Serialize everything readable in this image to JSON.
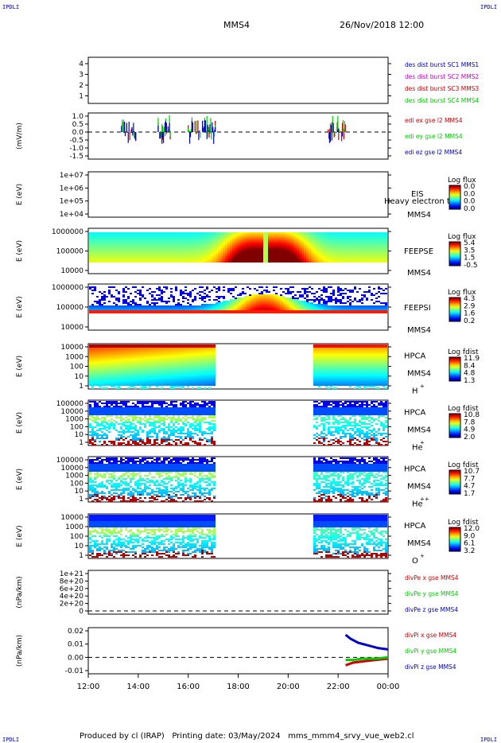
{
  "corners": {
    "tl": "IPDLI",
    "tr": "IPDLI",
    "bl": "IPDLI",
    "br": "IPDLI"
  },
  "header": {
    "title": "MMS4",
    "datetime": "26/Nov/2018 12:00"
  },
  "footer": {
    "text": "Produced by cl (IRAP)   Printing date: 03/May/2024   mms_mmm4_srvy_vue_web2.cl"
  },
  "x_axis": {
    "ticks": [
      "12:00",
      "14:00",
      "16:00",
      "18:00",
      "20:00",
      "22:00",
      "00:00"
    ]
  },
  "colors": {
    "red": "#cc0000",
    "green": "#00cc00",
    "blue": "#0000cc",
    "magenta": "#cc00cc"
  },
  "chart_data": [
    {
      "type": "line",
      "panel": "des-dist-burst",
      "yticks": [
        "4",
        "3",
        "2",
        "1"
      ],
      "ylim": [
        0.5,
        4.5
      ],
      "legend": [
        {
          "name": "des dist burst SC1 MMS1",
          "color": "#0000cc"
        },
        {
          "name": "des dist burst SC2 MMS2",
          "color": "#cc00cc"
        },
        {
          "name": "des dist burst SC3 MMS3",
          "color": "#cc0000"
        },
        {
          "name": "des dist burst SC4 MMS4",
          "color": "#00cc00"
        }
      ]
    },
    {
      "type": "line",
      "panel": "edi",
      "ylabel": "(mV/m)",
      "yticks": [
        "1.0",
        "0.5",
        "0.0",
        "-0.5",
        "-1.0",
        "-1.5"
      ],
      "ylim": [
        -1.6,
        1.1
      ],
      "legend": [
        {
          "name": "edi ex gse l2 MMS4",
          "color": "#cc0000"
        },
        {
          "name": "edi ey gse l2 MMS4",
          "color": "#00cc00"
        },
        {
          "name": "edi ez gse l2 MMS4",
          "color": "#0000cc"
        }
      ]
    },
    {
      "type": "heatmap",
      "panel": "eis",
      "ylabel": "E (eV)",
      "yticks": [
        "1e+07",
        "1e+06",
        "1e+05",
        "1e+04"
      ],
      "label": "EIS",
      "sc": "MMS4",
      "overlay": "Heavy electron te",
      "cb_title": "Log flux",
      "cb_ticks": [
        "0.0",
        "0.0",
        "0.0",
        "0.0"
      ]
    },
    {
      "type": "heatmap",
      "panel": "feeps-e",
      "ylabel": "E (eV)",
      "yticks": [
        "1000000",
        "100000",
        "10000"
      ],
      "label": "FEEPSE",
      "sc": "MMS4",
      "cb_title": "Log flux",
      "cb_ticks": [
        "5.4",
        "3.5",
        "1.5",
        "-0.5"
      ]
    },
    {
      "type": "heatmap",
      "panel": "feeps-i",
      "ylabel": "E (eV)",
      "yticks": [
        "1000000",
        "100000",
        "10000"
      ],
      "label": "FEEPSI",
      "sc": "MMS4",
      "cb_title": "Log flux",
      "cb_ticks": [
        "4.3",
        "2.9",
        "1.6",
        "0.2"
      ]
    },
    {
      "type": "heatmap",
      "panel": "hpca-h",
      "ylabel": "E (eV)",
      "yticks": [
        "10000",
        "1000",
        "100",
        "10",
        "1"
      ],
      "label": "HPCA",
      "sc": "MMS4",
      "species": "H",
      "charge": "+",
      "cb_title": "Log fdist",
      "cb_ticks": [
        "11.9",
        "8.4",
        "4.8",
        "1.3"
      ]
    },
    {
      "type": "heatmap",
      "panel": "hpca-he1",
      "ylabel": "E (eV)",
      "yticks": [
        "100000",
        "10000",
        "1000",
        "100",
        "10",
        "1"
      ],
      "label": "HPCA",
      "sc": "MMS4",
      "species": "He",
      "charge": "+",
      "cb_title": "Log fdist",
      "cb_ticks": [
        "10.8",
        "7.8",
        "4.9",
        "2.0"
      ]
    },
    {
      "type": "heatmap",
      "panel": "hpca-he2",
      "ylabel": "E (eV)",
      "yticks": [
        "100000",
        "10000",
        "1000",
        "100",
        "10",
        "1"
      ],
      "label": "HPCA",
      "sc": "MMS4",
      "species": "He",
      "charge": "++",
      "cb_title": "Log fdist",
      "cb_ticks": [
        "10.7",
        "7.7",
        "4.7",
        "1.7"
      ]
    },
    {
      "type": "heatmap",
      "panel": "hpca-o",
      "ylabel": "E (eV)",
      "yticks": [
        "10000",
        "1000",
        "100",
        "10",
        "1"
      ],
      "label": "HPCA",
      "sc": "MMS4",
      "species": "O",
      "charge": "+",
      "cb_title": "Log fdist",
      "cb_ticks": [
        "12.0",
        "9.0",
        "6.1",
        "3.2"
      ]
    },
    {
      "type": "line",
      "panel": "divpe",
      "ylabel": "(nPa/km)",
      "yticks": [
        "1e+21",
        "8e+20",
        "6e+20",
        "4e+20",
        "2e+20",
        "0"
      ],
      "legend": [
        {
          "name": "divPe x gse MMS4",
          "color": "#cc0000"
        },
        {
          "name": "divPe y gse MMS4",
          "color": "#00cc00"
        },
        {
          "name": "divPe z gse MMS4",
          "color": "#0000cc"
        }
      ]
    },
    {
      "type": "line",
      "panel": "divpi",
      "ylabel": "(nPa/km)",
      "yticks": [
        "0.02",
        "0.01",
        "0.00",
        "-0.01"
      ],
      "ylim": [
        -0.012,
        0.022
      ],
      "legend": [
        {
          "name": "divPi x gse MMS4",
          "color": "#cc0000"
        },
        {
          "name": "divPi y gse MMS4",
          "color": "#00cc00"
        },
        {
          "name": "divPi z gse MMS4",
          "color": "#0000cc"
        }
      ],
      "series": [
        {
          "name": "divPi x gse MMS4",
          "x": [
            22.3,
            22.6,
            23.0,
            23.5,
            24.0
          ],
          "values": [
            -0.006,
            -0.004,
            -0.003,
            -0.002,
            -0.001
          ]
        },
        {
          "name": "divPi y gse MMS4",
          "x": [
            22.3,
            22.6,
            23.0,
            23.5,
            24.0
          ],
          "values": [
            -0.002,
            -0.002,
            -0.001,
            -0.001,
            0.0
          ]
        },
        {
          "name": "divPi z gse MMS4",
          "x": [
            22.3,
            22.5,
            22.8,
            23.2,
            23.6,
            24.0
          ],
          "values": [
            0.017,
            0.014,
            0.011,
            0.009,
            0.007,
            0.006
          ]
        }
      ]
    }
  ]
}
